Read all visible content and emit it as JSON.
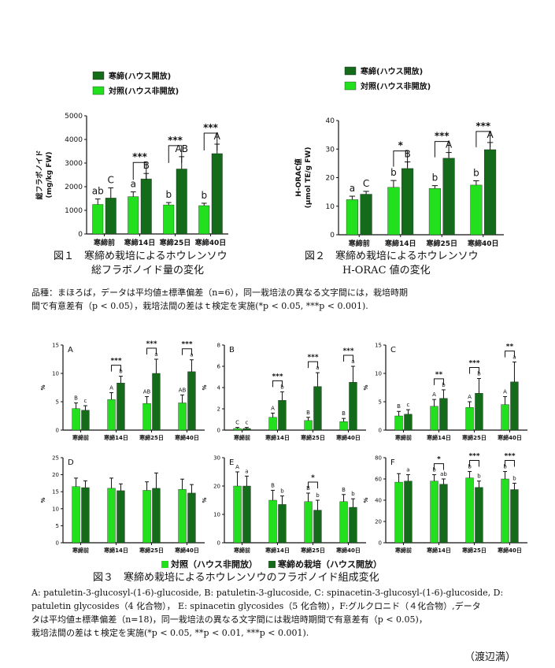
{
  "colors": {
    "control": "#22e01e",
    "treatment": "#146b1a",
    "axis": "#111111"
  },
  "figure1": {
    "caption_line1": "図１　寒締め栽培によるホウレンソウ",
    "caption_line2": "総フラボノイド量の変化"
  },
  "figure2": {
    "caption_line1": "図２　寒締め栽培によるホウレンソウ",
    "caption_line2": "H-ORAC 値の変化"
  },
  "note12_line1": "品種：まほろば，データは平均値±標準偏差（n=6），同一栽培法の異なる文字間には，栽培時期",
  "note12_line2": "間で有意差有（p < 0.05），栽培法間の差はｔ検定を実施(*p < 0.05, ***p < 0.001).",
  "figure3": {
    "legend_control": "対照（ハウス非開放）",
    "legend_treatment": "寒締め栽培（ハウス開放）",
    "caption": "図３　寒締め栽培によるホウレンソウのフラボノイド組成変化"
  },
  "note3_line1": "A:  patuletin-3-glucosyl-(1-6)-glucoside,  B:  patuletin-3-glucoside,  C:  spinacetin-3-glucosyl-(1-6)-glucoside,  D:",
  "note3_line2": "patuletin glycosides（4 化合物），  E: spinacetin glycosides（5 化合物），F:グルクロニド（４化合物）,データ",
  "note3_line3": "タは平均値±標準偏差（n=18)，同一栽培法の異なる文字間には栽培時期間で有意差有（p < 0.05)，",
  "note3_line4": "栽培法間の差はｔ検定を実施(*p < 0.05, **p < 0.01, ***p < 0.001).",
  "author": "（渡辺満）",
  "chart_data": [
    {
      "id": "fig1",
      "type": "bar",
      "categories": [
        "寒締前",
        "寒締14日",
        "寒締25日",
        "寒締40日"
      ],
      "ylabel": "総フラボノイド\n(mg/kg FW)",
      "ylim": [
        0,
        5000
      ],
      "yticks": [
        0,
        1000,
        2000,
        3000,
        4000,
        5000
      ],
      "legend": [
        "寒締(ハウス開放)",
        "対照(ハウス非開放)"
      ],
      "series": [
        {
          "name": "対照(ハウス非開放)",
          "role": "control",
          "values": [
            1250,
            1580,
            1230,
            1200
          ],
          "err": [
            230,
            200,
            100,
            100
          ],
          "letters": [
            "ab",
            "a",
            "b",
            "b"
          ]
        },
        {
          "name": "寒締(ハウス開放)",
          "role": "treatment",
          "values": [
            1520,
            2330,
            2750,
            3400
          ],
          "err": [
            430,
            230,
            520,
            400
          ],
          "letters": [
            "C",
            "B",
            "AB",
            "A"
          ]
        }
      ],
      "sig": [
        "",
        "***",
        "***",
        "***"
      ]
    },
    {
      "id": "fig2",
      "type": "bar",
      "categories": [
        "寒締前",
        "寒締14日",
        "寒締25日",
        "寒締40日"
      ],
      "ylabel": "H-ORAC値\n(μmol TE/g FW)",
      "ylim": [
        0,
        40
      ],
      "yticks": [
        0,
        10,
        20,
        30,
        40
      ],
      "legend": [
        "寒締(ハウス開放)",
        "対照(ハウス非開放)"
      ],
      "series": [
        {
          "name": "対照(ハウス非開放)",
          "role": "control",
          "values": [
            12.3,
            16.6,
            16.2,
            17.4
          ],
          "err": [
            1.2,
            2.4,
            1.0,
            1.5
          ],
          "letters": [
            "a",
            "b",
            "b",
            "b"
          ]
        },
        {
          "name": "寒締(ハウス開放)",
          "role": "treatment",
          "values": [
            14.2,
            23.2,
            26.8,
            29.8
          ],
          "err": [
            1.0,
            2.3,
            2.0,
            2.5
          ],
          "letters": [
            "C",
            "B",
            "A",
            "A"
          ]
        }
      ],
      "sig": [
        "",
        "*",
        "***",
        "***"
      ]
    },
    {
      "id": "A",
      "type": "bar",
      "panel_label": "A",
      "categories": [
        "寒締前",
        "寒締14日",
        "寒締25日",
        "寒締40日"
      ],
      "ylabel": "%",
      "ylim": [
        0,
        15
      ],
      "yticks": [
        0,
        5,
        10,
        15
      ],
      "series": [
        {
          "name": "対照（ハウス非開放）",
          "role": "control",
          "values": [
            3.8,
            5.4,
            4.7,
            4.8
          ],
          "err": [
            1.0,
            1.2,
            1.2,
            1.4
          ],
          "letters": [
            "B",
            "A",
            "AB",
            "AB"
          ]
        },
        {
          "name": "寒締め栽培（ハウス開放）",
          "role": "treatment",
          "values": [
            3.5,
            8.3,
            10.0,
            10.3
          ],
          "err": [
            0.8,
            1.2,
            2.5,
            2.1
          ],
          "letters": [
            "c",
            "b",
            "a",
            "a"
          ]
        }
      ],
      "sig": [
        "",
        "***",
        "***",
        "***"
      ]
    },
    {
      "id": "B",
      "type": "bar",
      "panel_label": "B",
      "categories": [
        "寒締前",
        "寒締14日",
        "寒締25日",
        "寒締40日"
      ],
      "ylabel": "%",
      "ylim": [
        0,
        8
      ],
      "yticks": [
        0,
        2,
        4,
        6,
        8
      ],
      "series": [
        {
          "name": "対照（ハウス非開放）",
          "role": "control",
          "values": [
            0.15,
            1.2,
            0.9,
            0.8
          ],
          "err": [
            0.1,
            0.4,
            0.3,
            0.3
          ],
          "letters": [
            "C",
            "A",
            "B",
            "B"
          ]
        },
        {
          "name": "寒締め栽培（ハウス開放）",
          "role": "treatment",
          "values": [
            0.15,
            2.8,
            4.1,
            4.5
          ],
          "err": [
            0.1,
            0.8,
            1.3,
            1.5
          ],
          "letters": [
            "c",
            "b",
            "a",
            "a"
          ]
        }
      ],
      "sig": [
        "",
        "***",
        "***",
        "***"
      ]
    },
    {
      "id": "C",
      "type": "bar",
      "panel_label": "C",
      "categories": [
        "寒締前",
        "寒締14日",
        "寒締25日",
        "寒締40日"
      ],
      "ylabel": "%",
      "ylim": [
        0,
        15
      ],
      "yticks": [
        0,
        5,
        10,
        15
      ],
      "series": [
        {
          "name": "対照（ハウス非開放）",
          "role": "control",
          "values": [
            2.5,
            4.2,
            4.0,
            4.5
          ],
          "err": [
            0.8,
            1.2,
            1.0,
            1.4
          ],
          "letters": [
            "B",
            "A",
            "A",
            "A"
          ]
        },
        {
          "name": "寒締め栽培（ハウス開放）",
          "role": "treatment",
          "values": [
            2.8,
            5.6,
            6.5,
            8.5
          ],
          "err": [
            0.8,
            1.5,
            2.6,
            3.5
          ],
          "letters": [
            "c",
            "b",
            "b",
            "a"
          ]
        }
      ],
      "sig": [
        "",
        "**",
        "***",
        "**"
      ]
    },
    {
      "id": "D",
      "type": "bar",
      "panel_label": "D",
      "categories": [
        "寒締前",
        "寒締14日",
        "寒締25日",
        "寒締40日"
      ],
      "ylabel": "%",
      "ylim": [
        0,
        25
      ],
      "yticks": [
        0,
        5,
        10,
        15,
        20,
        25
      ],
      "series": [
        {
          "name": "対照（ハウス非開放）",
          "role": "control",
          "values": [
            16.5,
            16.0,
            15.4,
            15.7
          ],
          "err": [
            2.5,
            3.0,
            2.5,
            3.0
          ],
          "letters": [
            "",
            "",
            "",
            ""
          ]
        },
        {
          "name": "寒締め栽培（ハウス開放）",
          "role": "treatment",
          "values": [
            16.2,
            15.3,
            16.0,
            14.6
          ],
          "err": [
            2.0,
            2.0,
            4.5,
            2.5
          ],
          "letters": [
            "",
            "",
            "",
            ""
          ]
        }
      ],
      "sig": [
        "",
        "",
        "",
        ""
      ]
    },
    {
      "id": "E",
      "type": "bar",
      "panel_label": "E",
      "categories": [
        "寒締前",
        "寒締14日",
        "寒締25日",
        "寒締40日"
      ],
      "ylabel": "%",
      "ylim": [
        0,
        30
      ],
      "yticks": [
        0,
        10,
        20,
        30
      ],
      "series": [
        {
          "name": "対照（ハウス非開放）",
          "role": "control",
          "values": [
            20.0,
            15.0,
            14.5,
            14.5
          ],
          "err": [
            5.0,
            3.5,
            3.0,
            2.5
          ],
          "letters": [
            "A",
            "B",
            "B",
            "B"
          ]
        },
        {
          "name": "寒締め栽培（ハウス開放）",
          "role": "treatment",
          "values": [
            20.0,
            13.5,
            11.5,
            12.5
          ],
          "err": [
            3.5,
            3.0,
            3.5,
            3.0
          ],
          "letters": [
            "a",
            "b",
            "b",
            "b"
          ]
        }
      ],
      "sig": [
        "",
        "",
        "*",
        ""
      ]
    },
    {
      "id": "F",
      "type": "bar",
      "panel_label": "F",
      "categories": [
        "寒締前",
        "寒締14日",
        "寒締25日",
        "寒締40日"
      ],
      "ylabel": "%",
      "ylim": [
        0,
        80
      ],
      "yticks": [
        0,
        20,
        40,
        60,
        80
      ],
      "series": [
        {
          "name": "対照（ハウス非開放）",
          "role": "control",
          "values": [
            57,
            58,
            61,
            60
          ],
          "err": [
            8,
            6,
            6,
            7
          ],
          "letters": [
            "",
            "b",
            "b",
            "b"
          ]
        },
        {
          "name": "寒締め栽培（ハウス開放）",
          "role": "treatment",
          "values": [
            58,
            55,
            52,
            50
          ],
          "err": [
            6,
            5,
            6,
            6
          ],
          "letters": [
            "a",
            "ab",
            "b",
            "b"
          ]
        }
      ],
      "sig": [
        "",
        "*",
        "***",
        "***"
      ]
    }
  ]
}
